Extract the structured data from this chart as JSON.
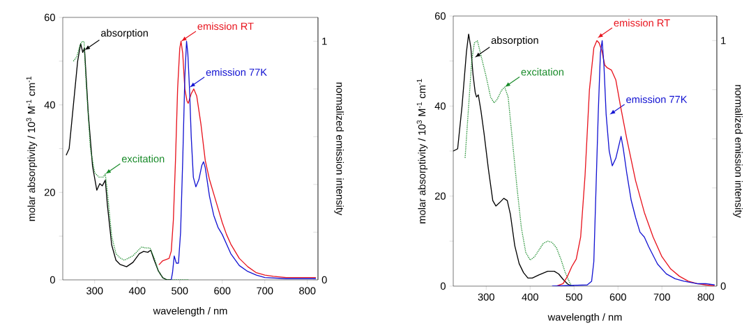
{
  "chart_data": [
    {
      "type": "line",
      "xlabel": "wavelength / nm",
      "ylabel": "molar absorptivity / 10$^{3}$ M$^{-1}$ cm$^{-1}$",
      "y2label": "normalized emission intensity",
      "xlim": [
        225,
        825
      ],
      "xticks": [
        300,
        400,
        500,
        600,
        700,
        800
      ],
      "ylim": [
        0,
        60
      ],
      "yticks": [
        0,
        {
          "value": 10,
          "label": null
        },
        20,
        {
          "value": 30,
          "label": null
        },
        40,
        {
          "value": 50,
          "label": null
        },
        60
      ],
      "y2lim": [
        0,
        1.1
      ],
      "y2ticks": [
        0,
        {
          "value": 0.2,
          "label": null
        },
        {
          "value": 0.4,
          "label": null
        },
        {
          "value": 0.6,
          "label": null
        },
        {
          "value": 0.8,
          "label": null
        },
        1
      ],
      "grid": false,
      "series": [
        {
          "color": "#000000",
          "line_style": "solid",
          "x": [
            233,
            240,
            250,
            260,
            267,
            272,
            276,
            285,
            295,
            305,
            312,
            318,
            325,
            330,
            340,
            350,
            360,
            375,
            390,
            405,
            415,
            425,
            432,
            440,
            450,
            460,
            470,
            480
          ],
          "values": [
            28.5,
            30,
            40,
            50,
            54,
            52,
            53,
            38,
            26,
            20.5,
            22,
            21.5,
            22.8,
            17,
            8,
            4.5,
            3.5,
            3,
            4,
            6,
            6.5,
            6.3,
            6.8,
            4.5,
            2,
            0.5,
            0,
            0
          ]
        },
        {
          "color": "#178a28",
          "line_style": "dotted",
          "x": [
            250,
            258,
            265,
            270,
            275,
            280,
            290,
            300,
            310,
            320,
            325,
            330,
            340,
            350,
            360,
            370,
            380,
            390,
            400,
            410,
            420,
            430,
            440,
            450,
            460,
            470,
            480,
            520
          ],
          "values": [
            50,
            51,
            53.5,
            54.5,
            54.5,
            45,
            30,
            24.5,
            23.5,
            23.5,
            24.2,
            20,
            10,
            6,
            5,
            4.5,
            5,
            5.5,
            6.5,
            7.5,
            7.3,
            7.3,
            5,
            2,
            0.5,
            0,
            0,
            0
          ]
        },
        {
          "color": "#e8141e",
          "line_style": "solid",
          "axis": "y2",
          "x": [
            451,
            460,
            475,
            480,
            485,
            490,
            495,
            500,
            503,
            507,
            512,
            517,
            520,
            527,
            533,
            540,
            550,
            560,
            570,
            580,
            590,
            600,
            610,
            620,
            640,
            660,
            680,
            700,
            720,
            750,
            780,
            800,
            820
          ],
          "values": [
            0.063,
            0.08,
            0.09,
            0.12,
            0.25,
            0.5,
            0.8,
            0.97,
            1.0,
            0.95,
            0.8,
            0.75,
            0.74,
            0.78,
            0.8,
            0.77,
            0.65,
            0.5,
            0.42,
            0.36,
            0.3,
            0.24,
            0.19,
            0.15,
            0.09,
            0.055,
            0.03,
            0.02,
            0.015,
            0.01,
            0.01,
            0.01,
            0.01
          ]
        },
        {
          "color": "#1414d2",
          "line_style": "solid",
          "axis": "y2",
          "x": [
            480,
            483,
            487,
            492,
            497,
            502,
            507,
            512,
            516,
            519,
            523,
            527,
            532,
            538,
            545,
            552,
            556,
            560,
            570,
            580,
            590,
            600,
            610,
            620,
            640,
            660,
            680,
            700,
            750,
            800,
            820
          ],
          "values": [
            0,
            0.03,
            0.1,
            0.07,
            0.07,
            0.2,
            0.5,
            0.85,
            1.0,
            0.95,
            0.8,
            0.6,
            0.43,
            0.39,
            0.42,
            0.48,
            0.495,
            0.47,
            0.35,
            0.27,
            0.22,
            0.19,
            0.15,
            0.11,
            0.06,
            0.035,
            0.02,
            0.01,
            0.005,
            0.005,
            0.005
          ]
        }
      ],
      "annotations": [
        {
          "text": "absorption",
          "x": 276,
          "y": 52.5
        },
        {
          "text": "excitation",
          "x": 325,
          "y": 24.2
        },
        {
          "text": "emission RT",
          "x": 503,
          "y": 54.5
        },
        {
          "text": "emission 77K",
          "x": 523,
          "y": 44
        }
      ]
    },
    {
      "type": "line",
      "xlabel": "wavelength / nm",
      "ylabel": "molar absorptivity / 10$^{3}$ M$^{-1}$ cm$^{-1}$",
      "y2label": "normalized emission intensity",
      "xlim": [
        225,
        825
      ],
      "xticks": [
        300,
        400,
        500,
        600,
        700,
        800
      ],
      "ylim": [
        0,
        60
      ],
      "yticks": [
        0,
        {
          "value": 10,
          "label": null
        },
        20,
        {
          "value": 30,
          "label": null
        },
        40,
        {
          "value": 50,
          "label": null
        },
        60
      ],
      "y2lim": [
        0,
        1.1
      ],
      "y2ticks": [
        0,
        {
          "value": 0.2,
          "label": null
        },
        {
          "value": 0.4,
          "label": null
        },
        {
          "value": 0.6,
          "label": null
        },
        {
          "value": 0.8,
          "label": null
        },
        1
      ],
      "grid": false,
      "series": [
        {
          "color": "#000000",
          "line_style": "solid",
          "x": [
            225,
            235,
            245,
            255,
            260,
            265,
            270,
            275,
            278,
            282,
            288,
            295,
            305,
            315,
            322,
            330,
            340,
            348,
            355,
            365,
            375,
            385,
            395,
            405,
            420,
            440,
            455,
            465,
            475,
            485,
            495,
            500
          ],
          "values": [
            30,
            30.5,
            40,
            52,
            56,
            53,
            47,
            43,
            42,
            42.5,
            39,
            34,
            26,
            19,
            17.8,
            18.5,
            19.5,
            19,
            16,
            9,
            5,
            3,
            1.8,
            1.8,
            2.5,
            3.3,
            3.3,
            2.7,
            1.5,
            0.5,
            0,
            0
          ]
        },
        {
          "color": "#178a28",
          "line_style": "dotted",
          "x": [
            252,
            260,
            267,
            273,
            280,
            290,
            300,
            310,
            318,
            325,
            335,
            342,
            350,
            360,
            370,
            380,
            390,
            400,
            410,
            420,
            430,
            440,
            450,
            460,
            470,
            480,
            490,
            495
          ],
          "values": [
            28.5,
            40,
            50,
            54,
            54.5,
            50.5,
            46.5,
            42,
            40.7,
            41.5,
            43.5,
            44.2,
            42,
            32,
            22,
            13,
            7.5,
            5.8,
            6.5,
            8,
            9.5,
            10,
            9.7,
            8.5,
            6,
            3,
            0.8,
            0
          ]
        },
        {
          "color": "#e8141e",
          "line_style": "solid",
          "axis": "y2",
          "x": [
            460,
            475,
            485,
            495,
            505,
            515,
            525,
            535,
            545,
            552,
            557,
            563,
            570,
            575,
            585,
            595,
            605,
            620,
            640,
            660,
            680,
            700,
            720,
            740,
            760,
            780,
            800,
            820
          ],
          "values": [
            0,
            0.01,
            0.04,
            0.08,
            0.11,
            0.2,
            0.45,
            0.8,
            0.97,
            1.0,
            0.99,
            0.96,
            0.9,
            0.89,
            0.88,
            0.84,
            0.74,
            0.6,
            0.43,
            0.3,
            0.2,
            0.12,
            0.07,
            0.04,
            0.02,
            0.01,
            0.005,
            0
          ]
        },
        {
          "color": "#1414d2",
          "line_style": "solid",
          "axis": "y2",
          "x": [
            450,
            530,
            540,
            545,
            550,
            555,
            560,
            564,
            568,
            573,
            580,
            587,
            595,
            603,
            607,
            612,
            620,
            630,
            640,
            650,
            660,
            670,
            690,
            710,
            730,
            750,
            780,
            800,
            820
          ],
          "values": [
            0,
            0.005,
            0.02,
            0.1,
            0.4,
            0.7,
            0.95,
            1.0,
            0.9,
            0.7,
            0.55,
            0.49,
            0.52,
            0.58,
            0.61,
            0.56,
            0.46,
            0.35,
            0.28,
            0.22,
            0.2,
            0.16,
            0.09,
            0.05,
            0.03,
            0.02,
            0.01,
            0.01,
            0.005
          ]
        }
      ],
      "annotations": [
        {
          "text": "absorption",
          "x": 274,
          "y": 50.8
        },
        {
          "text": "excitation",
          "x": 342,
          "y": 44.2
        },
        {
          "text": "emission RT",
          "x": 553,
          "y": 55.1
        },
        {
          "text": "emission 77K",
          "x": 581,
          "y": 38.1
        }
      ]
    }
  ]
}
